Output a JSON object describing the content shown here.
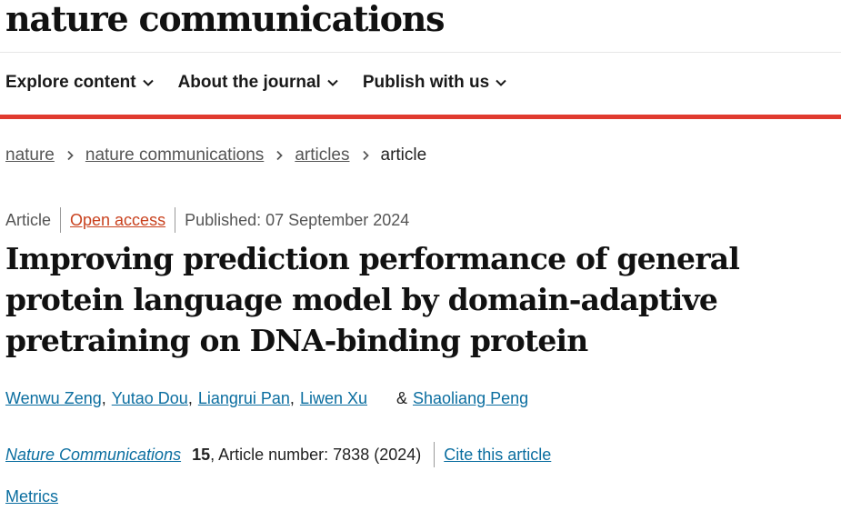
{
  "header": {
    "logo": "nature communications"
  },
  "nav": {
    "items": [
      {
        "label": "Explore content"
      },
      {
        "label": "About the journal"
      },
      {
        "label": "Publish with us"
      }
    ]
  },
  "breadcrumb": {
    "items": [
      "nature",
      "nature communications",
      "articles"
    ],
    "current": "article"
  },
  "article": {
    "type": "Article",
    "access": "Open access",
    "published": "Published: 07 September 2024",
    "title": "Improving prediction performance of general protein language model by domain-adaptive pretraining on DNA-binding protein",
    "authors": [
      "Wenwu Zeng",
      "Yutao Dou",
      "Liangrui Pan",
      "Liwen Xu",
      "Shaoliang Peng"
    ],
    "amp": "&",
    "journal": "Nature Communications",
    "volume": "15",
    "article_number": ", Article number: 7838 (2024)",
    "cite_label": "Cite this article",
    "metrics_label": "Metrics"
  },
  "colors": {
    "accent_bar": "#e03a2f",
    "link": "#0b6ea0",
    "open_access": "#c9421f"
  }
}
